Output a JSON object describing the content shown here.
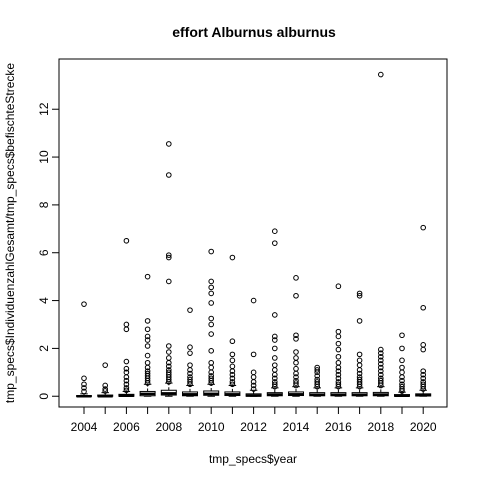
{
  "chart_data": {
    "type": "boxplot",
    "title": "effort Alburnus alburnus",
    "xlabel": "tmp_specs$year",
    "ylabel": "tmp_specs$IndividuenzahlGesamt/tmp_specs$befischteStrecke",
    "ylim": [
      -0.45,
      14.1
    ],
    "y_ticks": [
      0,
      2,
      4,
      6,
      8,
      10,
      12
    ],
    "x_tick_labels": [
      "2004",
      "2006",
      "2008",
      "2010",
      "2012",
      "2014",
      "2016",
      "2018",
      "2020"
    ],
    "grid": false,
    "legend": "none",
    "categories": [
      2004,
      2005,
      2006,
      2007,
      2008,
      2009,
      2010,
      2011,
      2012,
      2013,
      2014,
      2015,
      2016,
      2017,
      2018,
      2019,
      2020
    ],
    "boxes": [
      {
        "year": 2004,
        "min": 0.0,
        "q1": 0.0,
        "median": 0.0,
        "q3": 0.02,
        "max": 0.1,
        "outliers": [
          0.2,
          0.35,
          0.5,
          0.75,
          3.85
        ]
      },
      {
        "year": 2005,
        "min": 0.0,
        "q1": 0.0,
        "median": 0.0,
        "q3": 0.05,
        "max": 0.15,
        "outliers": [
          0.22,
          0.3,
          0.45,
          1.3
        ]
      },
      {
        "year": 2006,
        "min": 0.0,
        "q1": 0.0,
        "median": 0.02,
        "q3": 0.08,
        "max": 0.2,
        "outliers": [
          0.25,
          0.35,
          0.5,
          0.65,
          0.8,
          1.0,
          1.15,
          1.45,
          2.8,
          3.0,
          6.5
        ]
      },
      {
        "year": 2007,
        "min": 0.0,
        "q1": 0.02,
        "median": 0.1,
        "q3": 0.2,
        "max": 0.5,
        "outliers": [
          0.55,
          0.65,
          0.75,
          0.85,
          0.95,
          1.05,
          1.2,
          1.4,
          1.7,
          2.1,
          2.35,
          2.5,
          2.8,
          3.15,
          5.0
        ]
      },
      {
        "year": 2008,
        "min": 0.0,
        "q1": 0.05,
        "median": 0.12,
        "q3": 0.25,
        "max": 0.55,
        "outliers": [
          0.6,
          0.7,
          0.8,
          0.9,
          1.0,
          1.1,
          1.25,
          1.4,
          1.6,
          1.85,
          2.1,
          4.8,
          5.8,
          5.9,
          9.25,
          10.55
        ]
      },
      {
        "year": 2009,
        "min": 0.0,
        "q1": 0.02,
        "median": 0.08,
        "q3": 0.18,
        "max": 0.45,
        "outliers": [
          0.5,
          0.6,
          0.7,
          0.8,
          0.95,
          1.1,
          1.3,
          1.8,
          2.05,
          3.6
        ]
      },
      {
        "year": 2010,
        "min": 0.0,
        "q1": 0.04,
        "median": 0.1,
        "q3": 0.22,
        "max": 0.5,
        "outliers": [
          0.55,
          0.65,
          0.75,
          0.85,
          1.0,
          1.2,
          1.4,
          1.9,
          2.6,
          3.0,
          3.25,
          3.9,
          4.3,
          4.55,
          4.8,
          6.05
        ]
      },
      {
        "year": 2011,
        "min": 0.0,
        "q1": 0.03,
        "median": 0.08,
        "q3": 0.18,
        "max": 0.45,
        "outliers": [
          0.5,
          0.6,
          0.75,
          0.9,
          1.05,
          1.25,
          1.5,
          1.75,
          2.3,
          5.8
        ]
      },
      {
        "year": 2012,
        "min": 0.0,
        "q1": 0.0,
        "median": 0.03,
        "q3": 0.1,
        "max": 0.25,
        "outliers": [
          0.3,
          0.45,
          0.6,
          0.8,
          1.0,
          1.75,
          4.0
        ]
      },
      {
        "year": 2013,
        "min": 0.0,
        "q1": 0.02,
        "median": 0.07,
        "q3": 0.15,
        "max": 0.35,
        "outliers": [
          0.4,
          0.5,
          0.6,
          0.75,
          0.9,
          1.1,
          1.3,
          1.6,
          2.0,
          2.35,
          2.5,
          3.4,
          6.4,
          6.9
        ]
      },
      {
        "year": 2014,
        "min": 0.0,
        "q1": 0.03,
        "median": 0.08,
        "q3": 0.18,
        "max": 0.4,
        "outliers": [
          0.45,
          0.55,
          0.65,
          0.8,
          0.95,
          1.15,
          1.4,
          1.6,
          1.85,
          2.4,
          2.55,
          4.2,
          4.95
        ]
      },
      {
        "year": 2015,
        "min": 0.0,
        "q1": 0.02,
        "median": 0.06,
        "q3": 0.15,
        "max": 0.35,
        "outliers": [
          0.4,
          0.5,
          0.6,
          0.7,
          0.85,
          1.0,
          1.1,
          1.2
        ]
      },
      {
        "year": 2016,
        "min": 0.0,
        "q1": 0.02,
        "median": 0.06,
        "q3": 0.15,
        "max": 0.35,
        "outliers": [
          0.4,
          0.5,
          0.6,
          0.75,
          0.9,
          1.05,
          1.2,
          1.4,
          1.65,
          1.95,
          2.2,
          2.5,
          2.7,
          4.6
        ]
      },
      {
        "year": 2017,
        "min": 0.0,
        "q1": 0.02,
        "median": 0.06,
        "q3": 0.15,
        "max": 0.35,
        "outliers": [
          0.4,
          0.5,
          0.6,
          0.7,
          0.8,
          0.95,
          1.1,
          1.3,
          1.5,
          1.75,
          3.15,
          4.2,
          4.3
        ]
      },
      {
        "year": 2018,
        "min": 0.0,
        "q1": 0.02,
        "median": 0.07,
        "q3": 0.16,
        "max": 0.4,
        "outliers": [
          0.45,
          0.55,
          0.65,
          0.75,
          0.9,
          1.05,
          1.2,
          1.35,
          1.5,
          1.65,
          1.8,
          1.95,
          13.45
        ]
      },
      {
        "year": 2019,
        "min": 0.0,
        "q1": 0.0,
        "median": 0.02,
        "q3": 0.07,
        "max": 0.17,
        "outliers": [
          0.22,
          0.3,
          0.4,
          0.5,
          0.65,
          0.8,
          1.0,
          1.2,
          1.5,
          2.0,
          2.55
        ]
      },
      {
        "year": 2020,
        "min": 0.0,
        "q1": 0.01,
        "median": 0.04,
        "q3": 0.1,
        "max": 0.25,
        "outliers": [
          0.3,
          0.4,
          0.5,
          0.6,
          0.75,
          0.9,
          1.05,
          1.95,
          2.15,
          3.7,
          7.05
        ]
      }
    ]
  }
}
